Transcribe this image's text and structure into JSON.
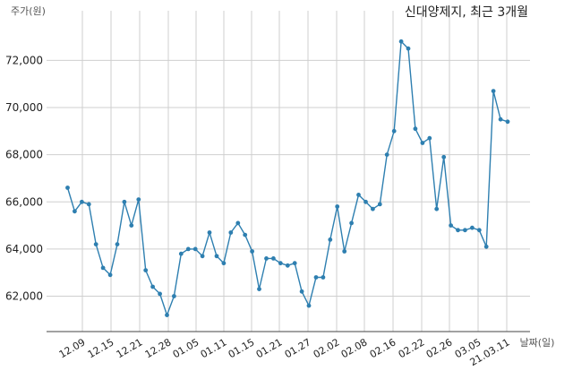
{
  "chart_data": {
    "type": "line",
    "title": "신대양제지, 최근 3개월",
    "ylabel": "주가(원)",
    "xlabel": "날짜(일)",
    "ylim": [
      60500,
      73800
    ],
    "grid": true,
    "x_tick_labels": [
      "12.09",
      "12.15",
      "12.21",
      "12.28",
      "01.05",
      "01.11",
      "01.15",
      "01.21",
      "01.27",
      "02.02",
      "02.08",
      "02.16",
      "02.22",
      "02.26",
      "03.05",
      "21.03.11"
    ],
    "y_tick_values": [
      62000,
      64000,
      66000,
      68000,
      70000,
      72000
    ],
    "y_tick_labels": [
      "62,000",
      "64,000",
      "66,000",
      "68,000",
      "70,000",
      "72,000"
    ],
    "colors": {
      "line": "#2e7fb0",
      "grid": "#cfcfcf"
    },
    "series": [
      {
        "values": [
          66600,
          65600,
          66000,
          65900,
          64200,
          63200,
          62900,
          64200,
          66000,
          65000,
          66100,
          63100,
          62400,
          62100,
          61200,
          62000,
          63800,
          64000,
          64000,
          63700,
          64700,
          63700,
          63400,
          64700,
          65100,
          64600,
          63900,
          62300,
          63600,
          63600,
          63400,
          63300,
          63400,
          62200,
          61600,
          62800,
          62800,
          64400,
          65800,
          63900,
          65100,
          66300,
          66000,
          65700,
          65900,
          68000,
          69000,
          72800,
          72500,
          69100,
          68500,
          68700,
          65700,
          67900,
          65000,
          64800,
          64800,
          64900,
          64800,
          64100,
          70700,
          69500,
          69400
        ]
      }
    ]
  }
}
